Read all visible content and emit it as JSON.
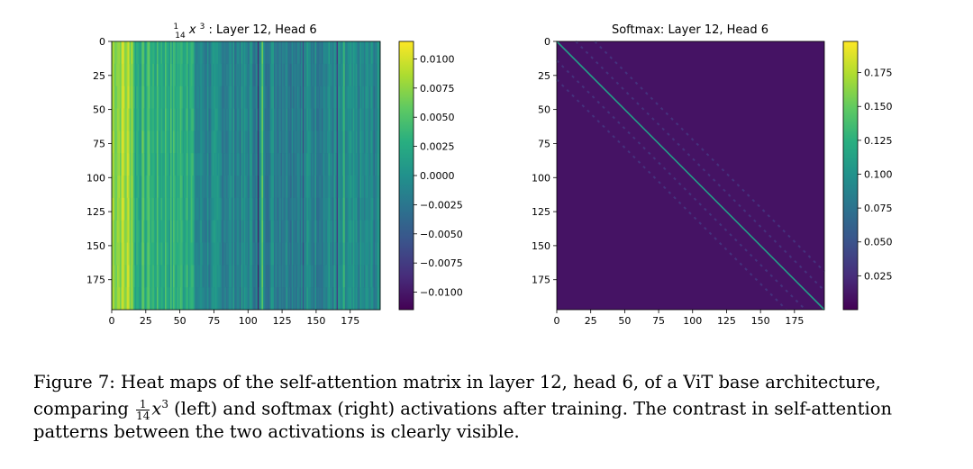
{
  "chart_data": [
    {
      "type": "heatmap",
      "title_prefix": "1/14 x^3",
      "title_label": ": Layer 12, Head 6",
      "matrix_size": 197,
      "xticks": [
        0,
        25,
        50,
        75,
        100,
        125,
        150,
        175
      ],
      "yticks": [
        0,
        25,
        50,
        75,
        100,
        125,
        150,
        175
      ],
      "colorbar": {
        "colormap": "viridis",
        "vmin": -0.0115,
        "vmax": 0.0115,
        "ticks": [
          0.01,
          0.0075,
          0.005,
          0.0025,
          0.0,
          -0.0025,
          -0.005,
          -0.0075,
          -0.01
        ],
        "tick_labels": [
          "0.0100",
          "0.0075",
          "0.0050",
          "0.0025",
          "0.0000",
          "−0.0025",
          "−0.0050",
          "−0.0075",
          "−0.0100"
        ]
      },
      "pattern": "vertical-stripes",
      "column_bias": [
        {
          "col_start": 0,
          "col_end": 16,
          "value": 0.008
        },
        {
          "col_start": 16,
          "col_end": 60,
          "value": 0.003
        },
        {
          "col_start": 60,
          "col_end": 197,
          "value": -0.001
        }
      ],
      "accent_columns": [
        {
          "col": 8,
          "value": 0.01
        },
        {
          "col": 12,
          "value": 0.0095
        },
        {
          "col": 22,
          "value": 0.006
        },
        {
          "col": 27,
          "value": 0.0055
        },
        {
          "col": 39,
          "value": 0.005
        },
        {
          "col": 55,
          "value": 0.004
        },
        {
          "col": 107,
          "value": -0.009
        },
        {
          "col": 110,
          "value": 0.006
        },
        {
          "col": 140,
          "value": -0.006
        },
        {
          "col": 165,
          "value": -0.007
        },
        {
          "col": 170,
          "value": 0.004
        }
      ]
    },
    {
      "type": "heatmap",
      "title": "Softmax: Layer 12, Head 6",
      "matrix_size": 197,
      "xticks": [
        0,
        25,
        50,
        75,
        100,
        125,
        150,
        175
      ],
      "yticks": [
        0,
        25,
        50,
        75,
        100,
        125,
        150,
        175
      ],
      "colorbar": {
        "colormap": "viridis",
        "vmin": 0.0,
        "vmax": 0.198,
        "ticks": [
          0.175,
          0.15,
          0.125,
          0.1,
          0.075,
          0.05,
          0.025
        ],
        "tick_labels": [
          "0.175",
          "0.150",
          "0.125",
          "0.100",
          "0.075",
          "0.050",
          "0.025"
        ]
      },
      "pattern": "diagonal",
      "background_value": 0.01,
      "diagonal_value": 0.11,
      "off_diagonal_offsets": [
        -28,
        -14,
        14,
        28
      ],
      "off_diagonal_value": 0.028
    }
  ],
  "caption": {
    "figure_label": "Figure 7:",
    "part1": " Heat maps of the self-attention matrix in layer 12, head 6, of a ViT base architecture, comparing ",
    "frac_num": "1",
    "frac_den": "14",
    "math": "x",
    "math_exp": "3",
    "part2": " (left) and softmax (right) activations after training. The contrast in self-attention patterns between the two activations is clearly visible."
  }
}
